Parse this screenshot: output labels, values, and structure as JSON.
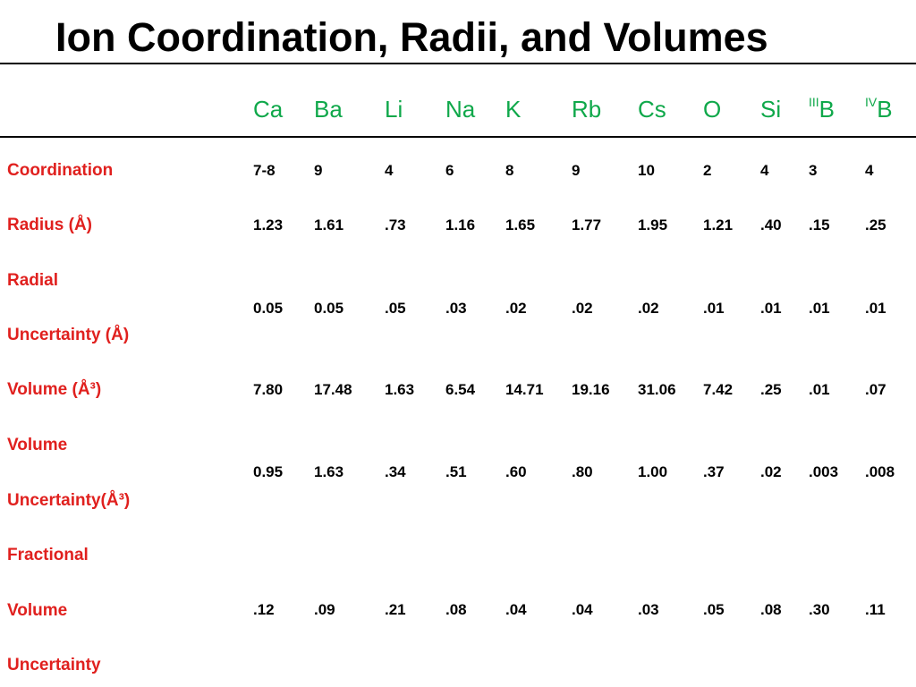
{
  "title": "Ion Coordination, Radii, and Volumes",
  "columns": [
    {
      "prefix": "",
      "symbol": "Ca"
    },
    {
      "prefix": "",
      "symbol": "Ba"
    },
    {
      "prefix": "",
      "symbol": "Li"
    },
    {
      "prefix": "",
      "symbol": "Na"
    },
    {
      "prefix": "",
      "symbol": "K"
    },
    {
      "prefix": "",
      "symbol": "Rb"
    },
    {
      "prefix": "",
      "symbol": "Cs"
    },
    {
      "prefix": "",
      "symbol": "O"
    },
    {
      "prefix": "",
      "symbol": "Si"
    },
    {
      "prefix": "III",
      "symbol": "B"
    },
    {
      "prefix": "IV",
      "symbol": "B"
    }
  ],
  "row_labels": {
    "coordination": "Coordination",
    "radius": "Radius (Å)",
    "radial_uncertainty_1": "Radial",
    "radial_uncertainty_2": "Uncertainty (Å)",
    "volume": "Volume (Å³)",
    "volume_uncertainty_1": "Volume",
    "volume_uncertainty_2": "Uncertainty(Å³)",
    "fractional_1": "Fractional",
    "fractional_2": "Volume",
    "fractional_3": "Uncertainty"
  },
  "rows": [
    {
      "key": "coordination",
      "values": [
        "7-8",
        "9",
        "4",
        "6",
        "8",
        "9",
        "10",
        "2",
        "4",
        "3",
        "4"
      ]
    },
    {
      "key": "radius",
      "values": [
        "1.23",
        "1.61",
        ".73",
        "1.16",
        "1.65",
        "1.77",
        "1.95",
        "1.21",
        ".40",
        ".15",
        ".25"
      ]
    },
    {
      "key": "radial_uncertainty",
      "values": [
        "0.05",
        "0.05",
        ".05",
        ".03",
        ".02",
        ".02",
        ".02",
        ".01",
        ".01",
        ".01",
        ".01"
      ]
    },
    {
      "key": "volume",
      "values": [
        "7.80",
        "17.48",
        "1.63",
        "6.54",
        "14.71",
        "19.16",
        "31.06",
        "7.42",
        ".25",
        ".01",
        ".07"
      ]
    },
    {
      "key": "volume_uncertainty",
      "values": [
        "0.95",
        "1.63",
        ".34",
        ".51",
        ".60",
        ".80",
        "1.00",
        ".37",
        ".02",
        ".003",
        ".008"
      ]
    },
    {
      "key": "fractional_volume_uncertainty",
      "values": [
        ".12",
        ".09",
        ".21",
        ".08",
        ".04",
        ".04",
        ".03",
        ".05",
        ".08",
        ".30",
        ".11"
      ]
    }
  ]
}
